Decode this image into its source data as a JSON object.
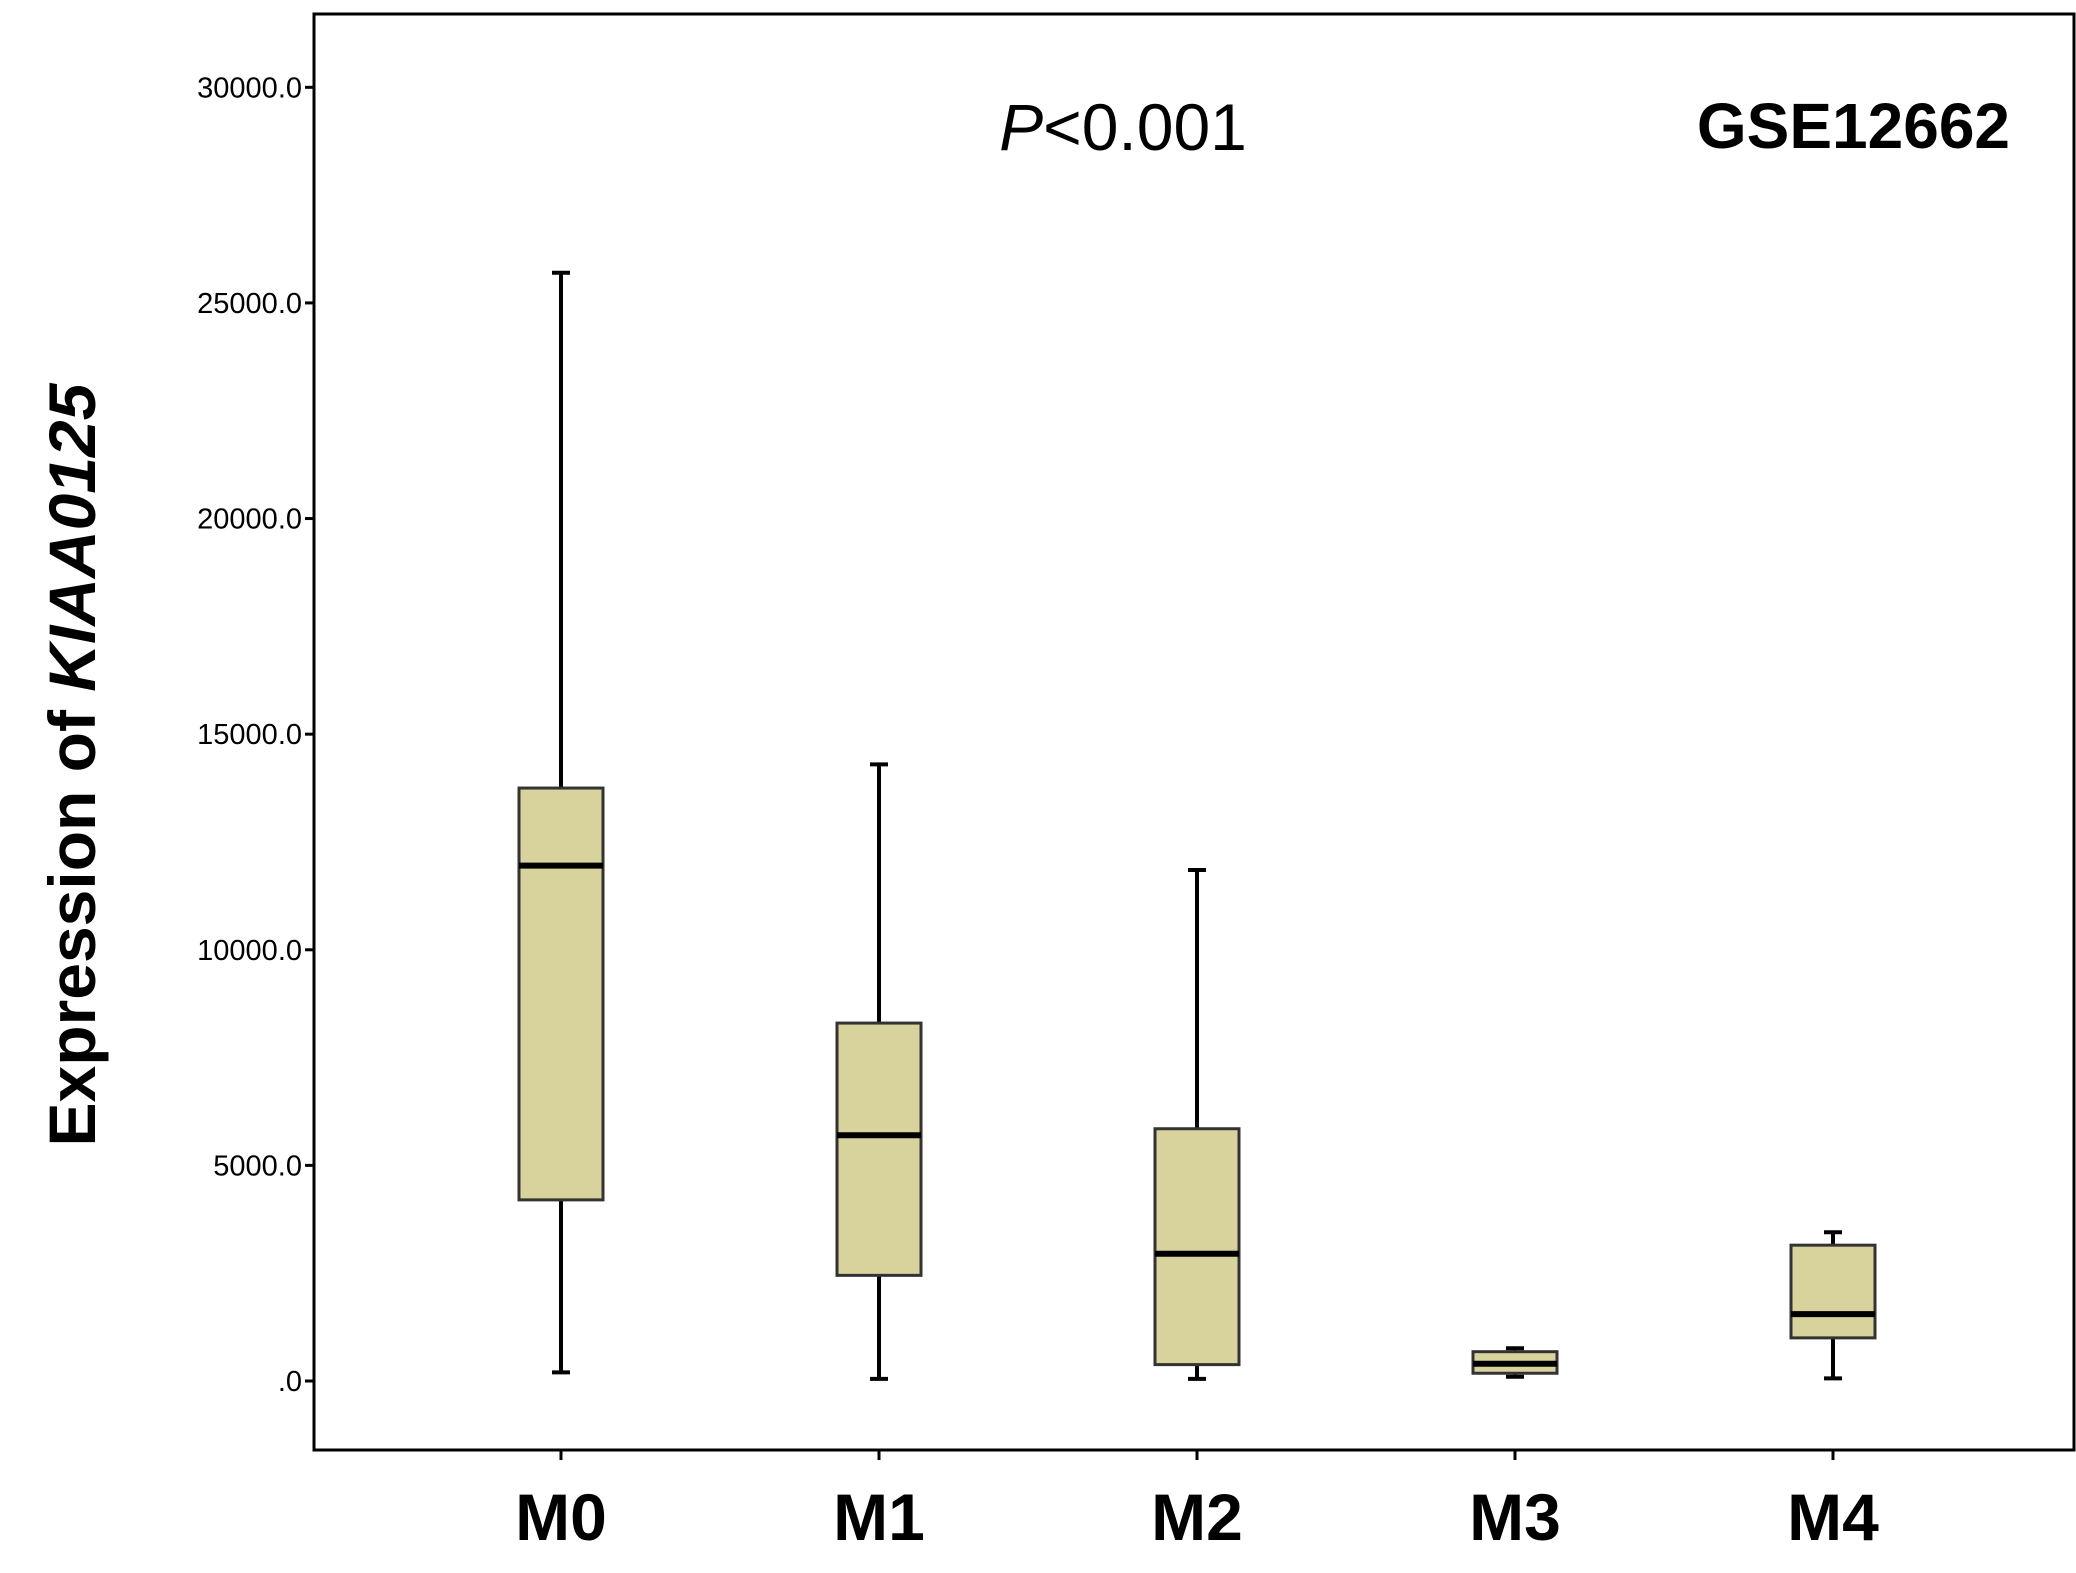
{
  "chart_data": {
    "type": "boxplot",
    "title": "",
    "dataset_label": "GSE12662",
    "annotation": {
      "italic_part": "P",
      "rest": "<0.001"
    },
    "ylabel": {
      "prefix": "Expression of ",
      "gene": "KIAA0125"
    },
    "xlabel": "",
    "ylim": [
      -1600,
      31700
    ],
    "yticks": [
      0,
      5000,
      10000,
      15000,
      20000,
      25000,
      30000
    ],
    "ytick_labels": [
      ".0",
      "5000.0",
      "10000.0",
      "15000.0",
      "20000.0",
      "25000.0",
      "30000.0"
    ],
    "categories": [
      "M0",
      "M1",
      "M2",
      "M3",
      "M4"
    ],
    "box_color": "#d8d39c",
    "line_color": "#000000",
    "boxes": [
      {
        "category": "M0",
        "whisker_low": 200,
        "q1": 4200,
        "median": 11950,
        "q3": 13750,
        "whisker_high": 25700
      },
      {
        "category": "M1",
        "whisker_low": 50,
        "q1": 2450,
        "median": 5700,
        "q3": 8300,
        "whisker_high": 14300
      },
      {
        "category": "M2",
        "whisker_low": 50,
        "q1": 380,
        "median": 2950,
        "q3": 5850,
        "whisker_high": 11850
      },
      {
        "category": "M3",
        "whisker_low": 100,
        "q1": 180,
        "median": 400,
        "q3": 680,
        "whisker_high": 760
      },
      {
        "category": "M4",
        "whisker_low": 60,
        "q1": 1000,
        "median": 1550,
        "q3": 3150,
        "whisker_high": 3450
      }
    ],
    "grid": false,
    "legend": "none"
  }
}
